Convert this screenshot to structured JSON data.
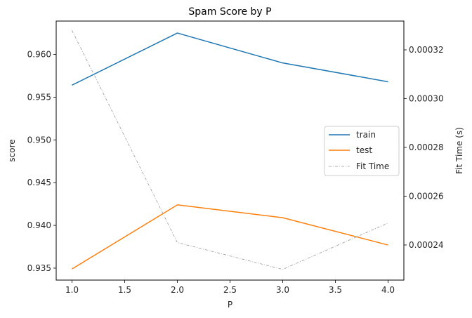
{
  "chart_data": {
    "type": "line",
    "title": "Spam Score by P",
    "xlabel": "P",
    "ylabel": "score",
    "y2label": "Fit Time (s)",
    "x": [
      1.0,
      2.0,
      3.0,
      4.0
    ],
    "xlim": [
      0.85,
      4.15
    ],
    "ylim": [
      0.9336,
      0.9639
    ],
    "y2lim": [
      0.0002256,
      0.0003318
    ],
    "xticks": [
      1.0,
      1.5,
      2.0,
      2.5,
      3.0,
      3.5,
      4.0
    ],
    "xtick_labels": [
      "1.0",
      "1.5",
      "2.0",
      "2.5",
      "3.0",
      "3.5",
      "4.0"
    ],
    "yticks": [
      0.935,
      0.94,
      0.945,
      0.95,
      0.955,
      0.96
    ],
    "ytick_labels": [
      "0.935",
      "0.940",
      "0.945",
      "0.950",
      "0.955",
      "0.960"
    ],
    "y2ticks": [
      0.00024,
      0.00026,
      0.00028,
      0.0003,
      0.00032
    ],
    "y2tick_labels": [
      "0.00024",
      "0.00026",
      "0.00028",
      "0.00030",
      "0.00032"
    ],
    "series": [
      {
        "name": "train",
        "axis": "left",
        "color": "#1f77b4",
        "style": "solid",
        "values": [
          0.9564,
          0.9625,
          0.959,
          0.9568
        ]
      },
      {
        "name": "test",
        "axis": "left",
        "color": "#ff7f0e",
        "style": "solid",
        "values": [
          0.9349,
          0.9424,
          0.9409,
          0.9377
        ]
      },
      {
        "name": "Fit Time",
        "axis": "right",
        "color": "#999999",
        "style": "dashdot",
        "values": [
          0.000328,
          0.000241,
          0.00023,
          0.000249
        ]
      }
    ],
    "grid": false,
    "legend_position": "center-right"
  }
}
